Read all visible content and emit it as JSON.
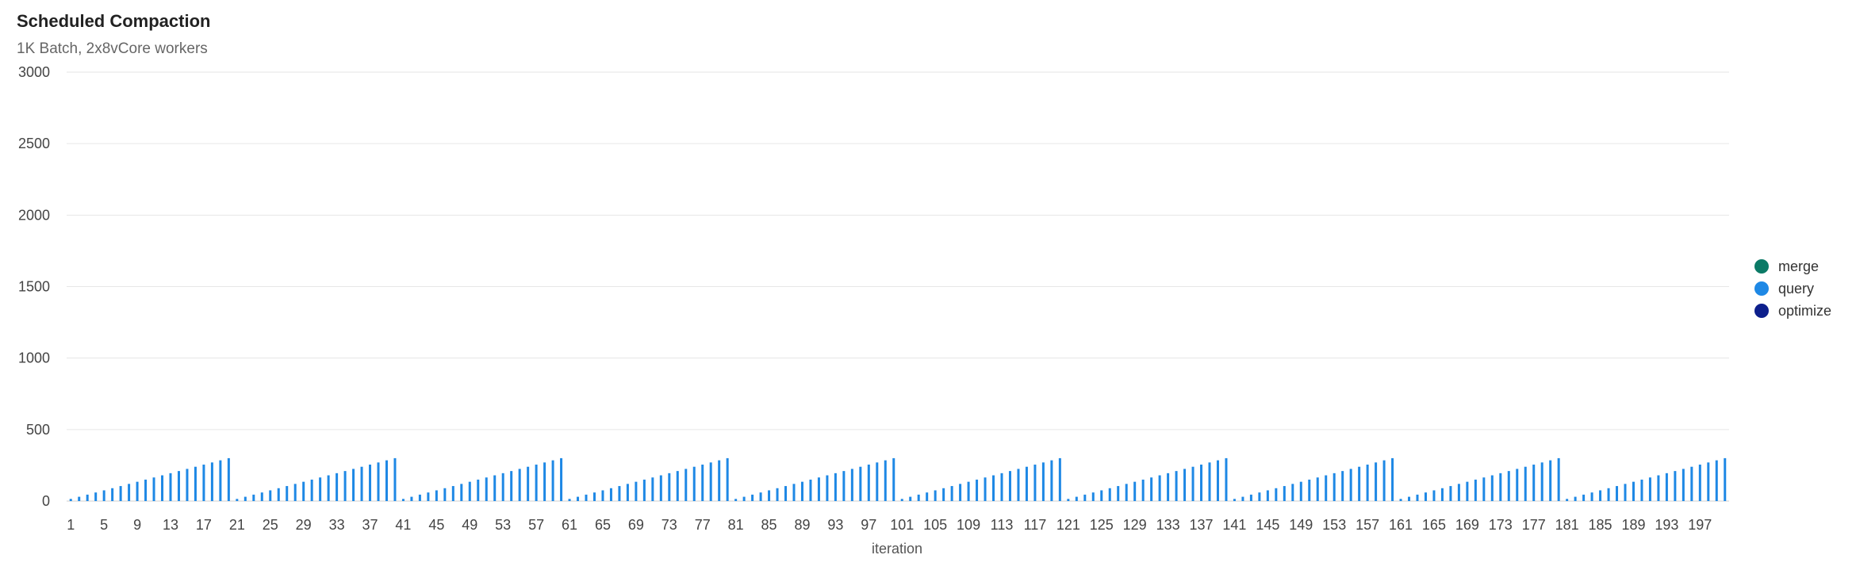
{
  "chart_data": {
    "type": "bar",
    "title": "Scheduled Compaction",
    "subtitle": "1K Batch, 2x8vCore workers",
    "xlabel": "iteration",
    "ylabel": "",
    "ylim": [
      0,
      3000
    ],
    "yticks": [
      "3000",
      "2500",
      "2000",
      "1500",
      "1000",
      "500",
      "0"
    ],
    "x_start": 1,
    "x_end": 200,
    "xtick_labels": [
      "1",
      "5",
      "9",
      "13",
      "17",
      "21",
      "25",
      "29",
      "33",
      "37",
      "41",
      "45",
      "49",
      "53",
      "57",
      "61",
      "65",
      "69",
      "73",
      "77",
      "81",
      "85",
      "89",
      "93",
      "97",
      "101",
      "105",
      "109",
      "113",
      "117",
      "121",
      "125",
      "129",
      "133",
      "137",
      "141",
      "145",
      "149",
      "153",
      "157",
      "161",
      "165",
      "169",
      "173",
      "177",
      "181",
      "185",
      "189",
      "193",
      "197"
    ],
    "grid": true,
    "legend_position": "right",
    "series": [
      {
        "name": "merge",
        "color": "#0b7a66",
        "values_note": "",
        "pattern": {
          "cycle": 20,
          "per_step": 0,
          "base": 0
        }
      },
      {
        "name": "query",
        "color": "#1e88e5",
        "pattern": {
          "cycle": 20,
          "per_step": 15,
          "base": 15
        }
      },
      {
        "name": "optimize",
        "color": "#0d1f8c",
        "pattern": {
          "cycle": 20,
          "per_step": 0,
          "base": 0
        }
      }
    ]
  },
  "legend": {
    "items": [
      {
        "label": "merge",
        "color": "#0b7a66"
      },
      {
        "label": "query",
        "color": "#1e88e5"
      },
      {
        "label": "optimize",
        "color": "#0d1f8c"
      }
    ]
  }
}
